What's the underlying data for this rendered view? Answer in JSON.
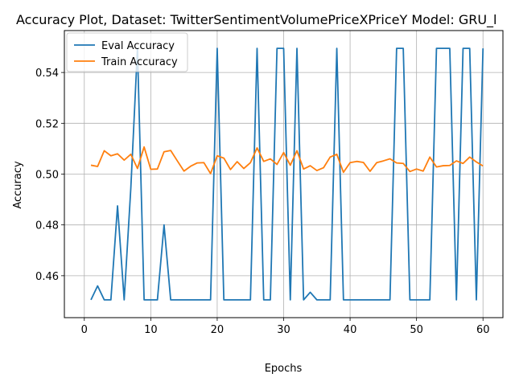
{
  "chart_data": {
    "type": "line",
    "title": "Accuracy Plot, Dataset: TwitterSentimentVolumePriceXPriceY Model: GRU_l",
    "xlabel": "Epochs",
    "ylabel": "Accuracy",
    "xlim": [
      -3,
      63
    ],
    "ylim": [
      0.4435,
      0.5565
    ],
    "xticks": [
      0,
      10,
      20,
      30,
      40,
      50,
      60
    ],
    "yticks": [
      0.46,
      0.48,
      0.5,
      0.52,
      0.54
    ],
    "ytick_labels": [
      "0.46",
      "0.48",
      "0.50",
      "0.52",
      "0.54"
    ],
    "grid": true,
    "legend_position": "top-left",
    "x": [
      1,
      2,
      3,
      4,
      5,
      6,
      7,
      8,
      9,
      10,
      11,
      12,
      13,
      14,
      15,
      16,
      17,
      18,
      19,
      20,
      21,
      22,
      23,
      24,
      25,
      26,
      27,
      28,
      29,
      30,
      31,
      32,
      33,
      34,
      35,
      36,
      37,
      38,
      39,
      40,
      41,
      42,
      43,
      44,
      45,
      46,
      47,
      48,
      49,
      50,
      51,
      52,
      53,
      54,
      55,
      56,
      57,
      58,
      59,
      60
    ],
    "series": [
      {
        "name": "Eval Accuracy",
        "color": "#1f77b4",
        "values": [
          0.4505,
          0.456,
          0.4505,
          0.4505,
          0.4875,
          0.4505,
          0.4945,
          0.5495,
          0.4505,
          0.4505,
          0.4505,
          0.48,
          0.4505,
          0.4505,
          0.4505,
          0.4505,
          0.4505,
          0.4505,
          0.4505,
          0.5495,
          0.4505,
          0.4505,
          0.4505,
          0.4505,
          0.4505,
          0.5495,
          0.4505,
          0.4505,
          0.5495,
          0.5495,
          0.4505,
          0.5495,
          0.4505,
          0.4535,
          0.4505,
          0.4505,
          0.4505,
          0.5495,
          0.4505,
          0.4505,
          0.4505,
          0.4505,
          0.4505,
          0.4505,
          0.4505,
          0.4505,
          0.5495,
          0.5495,
          0.4505,
          0.4505,
          0.4505,
          0.4505,
          0.5495,
          0.5495,
          0.5495,
          0.4505,
          0.5495,
          0.5495,
          0.4505,
          0.5495
        ]
      },
      {
        "name": "Train Accuracy",
        "color": "#ff7f0e",
        "values": [
          0.5035,
          0.503,
          0.5092,
          0.5072,
          0.508,
          0.5055,
          0.5078,
          0.5022,
          0.5107,
          0.5019,
          0.502,
          0.5088,
          0.5093,
          0.5052,
          0.5012,
          0.5031,
          0.5044,
          0.5045,
          0.5002,
          0.5072,
          0.5063,
          0.5018,
          0.5049,
          0.5022,
          0.5045,
          0.5103,
          0.505,
          0.506,
          0.5038,
          0.5085,
          0.5035,
          0.5092,
          0.502,
          0.5033,
          0.5014,
          0.5025,
          0.5067,
          0.5078,
          0.5007,
          0.5045,
          0.505,
          0.5046,
          0.5011,
          0.5045,
          0.5052,
          0.506,
          0.5044,
          0.5042,
          0.501,
          0.502,
          0.5012,
          0.5067,
          0.5028,
          0.5033,
          0.5034,
          0.5052,
          0.5042,
          0.5067,
          0.5048,
          0.5032
        ]
      }
    ]
  }
}
